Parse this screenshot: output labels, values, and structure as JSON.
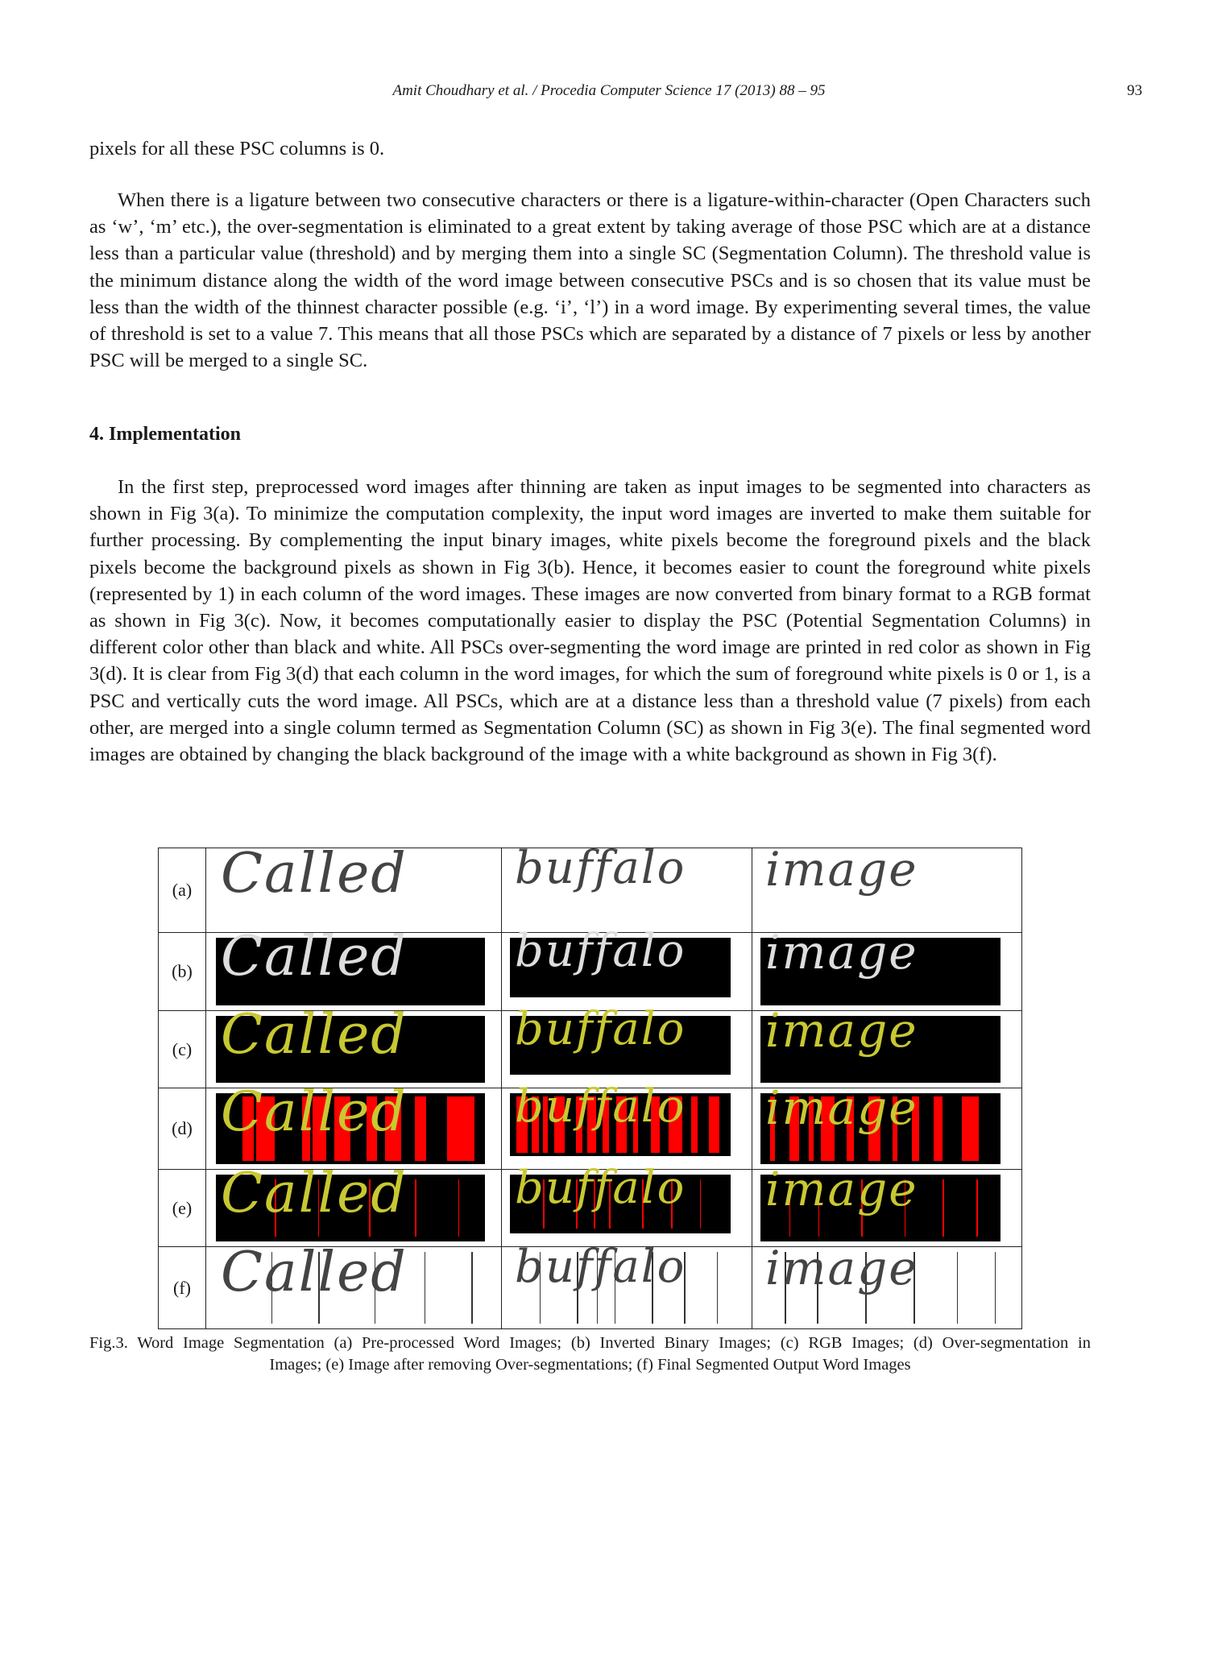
{
  "header": {
    "journal": "Amit Choudhary et al. / Procedia Computer Science 17 (2013) 88 – 95",
    "page_number": "93"
  },
  "paragraphs": {
    "p0": "pixels for all these PSC columns is 0.",
    "p1": "When there is a ligature between two consecutive characters or there is a ligature-within-character (Open Characters such as ‘w’, ‘m’ etc.), the over-segmentation is eliminated to a great extent by taking average of those PSC which are at a distance less than a particular value (threshold) and by merging them into a single SC (Segmentation Column). The threshold value is the minimum distance along the width of the word image between consecutive PSCs and is so chosen that its value must be less than the width of the thinnest character possible (e.g. ‘i’, ‘l’) in a word image. By experimenting several times, the value of threshold is set to a value 7. This means that all those PSCs which are separated by a distance of 7 pixels or less by another PSC will be merged to a single SC.",
    "heading": "4. Implementation",
    "p2": "In the first step, preprocessed word images after thinning are taken as input images to be segmented into characters as shown in Fig 3(a). To minimize the computation complexity, the input word images are inverted to make them suitable for further processing. By complementing the input binary images, white pixels become the foreground pixels and the black pixels become the background pixels as shown in Fig 3(b). Hence, it becomes easier to count the foreground white pixels (represented by 1) in each column of the word images. These images are now converted from binary format to a RGB format as shown in Fig 3(c). Now, it becomes computationally easier to display the PSC (Potential Segmentation Columns) in different color other than black and white. All PSCs over-segmenting the word image are printed in red color as shown in Fig 3(d). It is clear from Fig 3(d) that each column in the word images, for which the sum of foreground white pixels is 0 or 1, is a PSC and vertically cuts the word image. All PSCs, which are at a distance less than a threshold value (7 pixels) from each other, are merged into a single column termed as Segmentation Column (SC) as shown in Fig 3(e). The final segmented word images are obtained by changing the black background of the image with a white background as shown in Fig 3(f)."
  },
  "figure": {
    "rows": [
      {
        "label": "(a)",
        "style": "plain"
      },
      {
        "label": "(b)",
        "style": "inverted"
      },
      {
        "label": "(c)",
        "style": "rgb"
      },
      {
        "label": "(d)",
        "style": "over"
      },
      {
        "label": "(e)",
        "style": "merged"
      },
      {
        "label": "(f)",
        "style": "final"
      }
    ],
    "words": [
      "Called",
      "buffalo",
      "image"
    ],
    "colors": {
      "ink_plain": "#444444",
      "ink_yellow": "#c8c832",
      "psc_red": "#ff0000",
      "background_dark": "#000000"
    }
  },
  "caption": {
    "line1": "Fig.3. Word Image Segmentation (a) Pre-processed Word Images; (b) Inverted Binary Images; (c) RGB Images; (d) Over-segmentation in",
    "line2": "Images; (e) Image after removing Over-segmentations; (f) Final Segmented Output Word Images"
  }
}
